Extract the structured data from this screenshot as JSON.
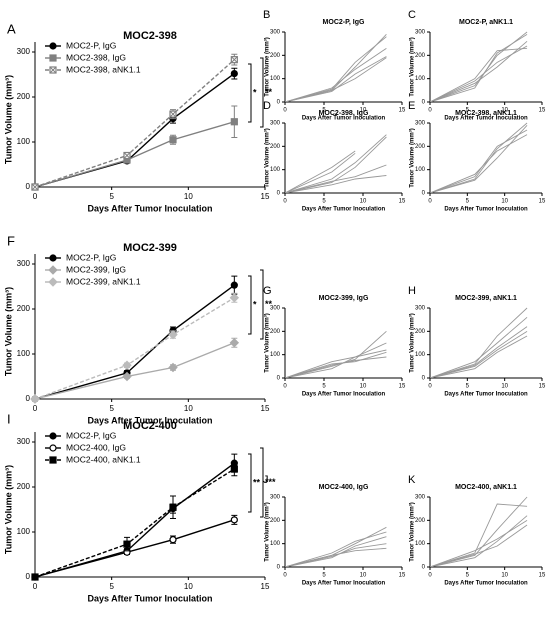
{
  "chart_data": [
    {
      "type": "line",
      "panel": "A",
      "title": "MOC2-398",
      "xlabel": "Days After Tumor Inoculation",
      "ylabel": "Tumor Volume (mm³)",
      "x": [
        0,
        6,
        9,
        13
      ],
      "xlim": [
        0,
        15
      ],
      "xticks": [
        0,
        5,
        10,
        15
      ],
      "ylim": [
        0,
        300
      ],
      "yticks": [
        0,
        100,
        200,
        300
      ],
      "legend": "upper left",
      "series": [
        {
          "name": "MOC2-P, IgG",
          "color": "#000000",
          "marker": "circle",
          "dash": false,
          "values": [
            0,
            58,
            152,
            252
          ],
          "errors": [
            0,
            5,
            10,
            12
          ]
        },
        {
          "name": "MOC2-398, IgG",
          "color": "#808080",
          "marker": "square",
          "dash": false,
          "values": [
            0,
            60,
            105,
            145
          ],
          "errors": [
            0,
            5,
            10,
            35
          ]
        },
        {
          "name": "MOC2-398, aNK1.1",
          "color": "#808080",
          "marker": "square-x",
          "dash": true,
          "values": [
            0,
            70,
            162,
            283
          ],
          "errors": [
            0,
            6,
            10,
            12
          ]
        }
      ],
      "annotations": [
        {
          "text": "*"
        },
        {
          "text": "**"
        }
      ]
    },
    {
      "type": "spaghetti",
      "panel": "B",
      "title": "MOC2-P, IgG",
      "xlabel": "Days After Tumor Inoculation",
      "ylabel": "Tumor Volume (mm³)",
      "x": [
        0,
        6,
        9,
        13
      ],
      "xlim": [
        0,
        15
      ],
      "xticks": [
        0,
        5,
        10,
        15
      ],
      "ylim": [
        0,
        300
      ],
      "yticks": [
        0,
        100,
        200,
        300
      ],
      "color": "#999999",
      "series": [
        {
          "values": [
            0,
            50,
            150,
            290
          ]
        },
        {
          "values": [
            0,
            55,
            170,
            280
          ]
        },
        {
          "values": [
            0,
            45,
            120,
            195
          ]
        },
        {
          "values": [
            0,
            60,
            140,
            230
          ]
        },
        {
          "values": [
            0,
            50,
            100,
            190
          ]
        }
      ]
    },
    {
      "type": "spaghetti",
      "panel": "C",
      "title": "MOC2-P, aNK1.1",
      "xlabel": "Days After Tumor Inoculation",
      "ylabel": "Tumor Volume (mm³)",
      "x": [
        0,
        6,
        9,
        13
      ],
      "xlim": [
        0,
        15
      ],
      "xticks": [
        0,
        5,
        10,
        15
      ],
      "ylim": [
        0,
        300
      ],
      "yticks": [
        0,
        100,
        200,
        300
      ],
      "color": "#999999",
      "series": [
        {
          "values": [
            0,
            70,
            200,
            300
          ]
        },
        {
          "values": [
            0,
            90,
            170,
            240
          ]
        },
        {
          "values": [
            0,
            60,
            210,
            290
          ]
        },
        {
          "values": [
            0,
            100,
            220,
            230
          ]
        },
        {
          "values": [
            0,
            80,
            150,
            260
          ]
        }
      ]
    },
    {
      "type": "spaghetti",
      "panel": "D",
      "title": "MOC2-398, IgG",
      "xlabel": "Days After Tumor Inoculation",
      "ylabel": "Tumor Volume (mm³)",
      "x": [
        0,
        6,
        9,
        13
      ],
      "xlim": [
        0,
        15
      ],
      "xticks": [
        0,
        5,
        10,
        15
      ],
      "ylim": [
        0,
        300
      ],
      "yticks": [
        0,
        100,
        200,
        300
      ],
      "color": "#999999",
      "series": [
        {
          "values": [
            0,
            90,
            170,
            null
          ]
        },
        {
          "values": [
            0,
            110,
            180,
            null
          ]
        },
        {
          "values": [
            0,
            50,
            70,
            120
          ]
        },
        {
          "values": [
            0,
            35,
            60,
            75
          ]
        },
        {
          "values": [
            0,
            45,
            110,
            240
          ]
        },
        {
          "values": [
            0,
            60,
            130,
            250
          ]
        }
      ]
    },
    {
      "type": "spaghetti",
      "panel": "E",
      "title": "MOC2-398, aNK1.1",
      "xlabel": "Days After Tumor Inoculation",
      "ylabel": "Tumor Volume (mm³)",
      "x": [
        0,
        6,
        9,
        13
      ],
      "xlim": [
        0,
        15
      ],
      "xticks": [
        0,
        5,
        10,
        15
      ],
      "ylim": [
        0,
        300
      ],
      "yticks": [
        0,
        100,
        200,
        300
      ],
      "color": "#999999",
      "series": [
        {
          "values": [
            0,
            60,
            190,
            300
          ]
        },
        {
          "values": [
            0,
            70,
            200,
            270
          ]
        },
        {
          "values": [
            0,
            80,
            180,
            250
          ]
        },
        {
          "values": [
            0,
            55,
            150,
            290
          ]
        }
      ]
    },
    {
      "type": "line",
      "panel": "F",
      "title": "MOC2-399",
      "xlabel": "Days After Tumor Inoculation",
      "ylabel": "Tumor Volume (mm³)",
      "x": [
        0,
        6,
        9,
        13
      ],
      "xlim": [
        0,
        15
      ],
      "xticks": [
        0,
        5,
        10,
        15
      ],
      "ylim": [
        0,
        300
      ],
      "yticks": [
        0,
        100,
        200,
        300
      ],
      "legend": "upper left",
      "series": [
        {
          "name": "MOC2-P, IgG",
          "color": "#000000",
          "marker": "circle",
          "dash": false,
          "values": [
            0,
            58,
            152,
            253
          ],
          "errors": [
            0,
            5,
            8,
            20
          ]
        },
        {
          "name": "MOC2-399, IgG",
          "color": "#aaaaaa",
          "marker": "diamond",
          "dash": false,
          "values": [
            0,
            50,
            70,
            125
          ],
          "errors": [
            0,
            4,
            6,
            10
          ]
        },
        {
          "name": "MOC2-399, aNK1.1",
          "color": "#bbbbbb",
          "marker": "diamond",
          "dash": true,
          "values": [
            0,
            75,
            143,
            225
          ],
          "errors": [
            0,
            5,
            8,
            10
          ]
        }
      ],
      "annotations": [
        {
          "text": "*"
        },
        {
          "text": "**"
        }
      ]
    },
    {
      "type": "spaghetti",
      "panel": "G",
      "title": "MOC2-399, IgG",
      "xlabel": "Days After Tumor Inoculation",
      "ylabel": "Tumor Volume (mm³)",
      "x": [
        0,
        6,
        9,
        13
      ],
      "xlim": [
        0,
        15
      ],
      "xticks": [
        0,
        5,
        10,
        15
      ],
      "ylim": [
        0,
        300
      ],
      "yticks": [
        0,
        100,
        200,
        300
      ],
      "color": "#999999",
      "series": [
        {
          "values": [
            0,
            50,
            80,
            200
          ]
        },
        {
          "values": [
            0,
            60,
            70,
            110
          ]
        },
        {
          "values": [
            0,
            40,
            90,
            150
          ]
        },
        {
          "values": [
            0,
            55,
            75,
            90
          ]
        },
        {
          "values": [
            0,
            70,
            90,
            120
          ]
        }
      ]
    },
    {
      "type": "spaghetti",
      "panel": "H",
      "title": "MOC2-399, aNK1.1",
      "xlabel": "Days After Tumor Inoculation",
      "ylabel": "Tumor Volume (mm³)",
      "x": [
        0,
        6,
        9,
        13
      ],
      "xlim": [
        0,
        15
      ],
      "xticks": [
        0,
        5,
        10,
        15
      ],
      "ylim": [
        0,
        300
      ],
      "yticks": [
        0,
        100,
        200,
        300
      ],
      "color": "#999999",
      "series": [
        {
          "values": [
            0,
            60,
            180,
            300
          ]
        },
        {
          "values": [
            0,
            50,
            120,
            200
          ]
        },
        {
          "values": [
            0,
            70,
            150,
            260
          ]
        },
        {
          "values": [
            0,
            40,
            110,
            180
          ]
        },
        {
          "values": [
            0,
            55,
            130,
            220
          ]
        }
      ]
    },
    {
      "type": "line",
      "panel": "I",
      "title": "MOC2-400",
      "xlabel": "Days After Tumor Inoculation",
      "ylabel": "Tumor Volume (mm³)",
      "x": [
        0,
        6,
        9,
        13
      ],
      "xlim": [
        0,
        15
      ],
      "xticks": [
        0,
        5,
        10,
        15
      ],
      "ylim": [
        0,
        300
      ],
      "yticks": [
        0,
        100,
        200,
        300
      ],
      "legend": "upper left",
      "series": [
        {
          "name": "MOC2-P, IgG",
          "color": "#000000",
          "marker": "circle",
          "dash": false,
          "values": [
            0,
            58,
            152,
            253
          ],
          "errors": [
            0,
            5,
            10,
            20
          ]
        },
        {
          "name": "MOC2-400, IgG",
          "color": "#000000",
          "marker": "open-circle",
          "dash": false,
          "values": [
            0,
            55,
            83,
            127
          ],
          "errors": [
            0,
            5,
            8,
            10
          ]
        },
        {
          "name": "MOC2-400, aNK1.1",
          "color": "#000000",
          "marker": "square",
          "dash": true,
          "values": [
            0,
            73,
            155,
            240
          ],
          "errors": [
            0,
            15,
            25,
            15
          ]
        }
      ],
      "annotations": [
        {
          "text": "**"
        },
        {
          "text": "***"
        }
      ]
    },
    {
      "type": "spaghetti",
      "panel": "J",
      "title": "MOC2-400, IgG",
      "xlabel": "Days After Tumor Inoculation",
      "ylabel": "Tumor Volume (mm³)",
      "x": [
        0,
        6,
        9,
        13
      ],
      "xlim": [
        0,
        15
      ],
      "xticks": [
        0,
        5,
        10,
        15
      ],
      "ylim": [
        0,
        300
      ],
      "yticks": [
        0,
        100,
        200,
        300
      ],
      "color": "#999999",
      "series": [
        {
          "values": [
            0,
            50,
            100,
            170
          ]
        },
        {
          "values": [
            0,
            45,
            80,
            100
          ]
        },
        {
          "values": [
            0,
            60,
            110,
            150
          ]
        },
        {
          "values": [
            0,
            40,
            90,
            130
          ]
        },
        {
          "values": [
            0,
            50,
            70,
            80
          ]
        }
      ]
    },
    {
      "type": "spaghetti",
      "panel": "K",
      "title": "MOC2-400, aNK1.1",
      "xlabel": "Days After Tumor Inoculation",
      "ylabel": "Tumor Volume (mm³)",
      "x": [
        0,
        6,
        9,
        13
      ],
      "xlim": [
        0,
        15
      ],
      "xticks": [
        0,
        5,
        10,
        15
      ],
      "ylim": [
        0,
        300
      ],
      "yticks": [
        0,
        100,
        200,
        300
      ],
      "color": "#999999",
      "series": [
        {
          "values": [
            0,
            60,
            270,
            260
          ]
        },
        {
          "values": [
            0,
            50,
            160,
            300
          ]
        },
        {
          "values": [
            0,
            70,
            120,
            200
          ]
        },
        {
          "values": [
            0,
            40,
            110,
            220
          ]
        },
        {
          "values": [
            0,
            55,
            90,
            180
          ]
        }
      ]
    }
  ]
}
